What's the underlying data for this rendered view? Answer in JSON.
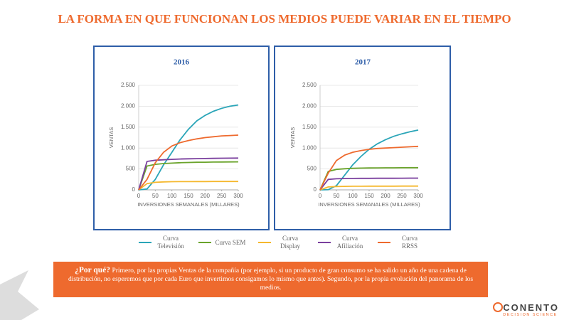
{
  "title": "LA FORMA EN QUE FUNCIONAN LOS MEDIOS PUEDE VARIAR EN EL TIEMPO",
  "chart_data": [
    {
      "type": "line",
      "title": "2016",
      "y_label": "VENTAS",
      "x_label": "INVERSIONES SEMANALES (MILLARES)",
      "x": [
        0,
        25,
        50,
        75,
        100,
        125,
        150,
        175,
        200,
        225,
        250,
        275,
        300
      ],
      "xlim": [
        0,
        300
      ],
      "xticks": [
        0,
        50,
        100,
        150,
        200,
        250,
        300
      ],
      "ylim": [
        0,
        2500
      ],
      "yticks": [
        0,
        500,
        {
          "value": 1000,
          "label": "1.000"
        },
        {
          "value": 1500,
          "label": "1.500"
        },
        {
          "value": 2000,
          "label": "2.000"
        },
        {
          "value": 2500,
          "label": "2.500"
        }
      ],
      "grid": true,
      "series": [
        {
          "color": "#2aa5b8",
          "values": [
            0,
            20,
            250,
            600,
            900,
            1200,
            1450,
            1650,
            1780,
            1880,
            1950,
            2000,
            2030
          ]
        },
        {
          "color": "#6aa32b",
          "values": [
            0,
            570,
            610,
            630,
            640,
            650,
            655,
            660,
            662,
            665,
            667,
            668,
            670
          ]
        },
        {
          "color": "#f5b82e",
          "values": [
            0,
            150,
            180,
            190,
            195,
            197,
            198,
            199,
            199,
            200,
            200,
            200,
            200
          ]
        },
        {
          "color": "#7a3f9e",
          "values": [
            0,
            680,
            710,
            720,
            730,
            738,
            743,
            747,
            750,
            753,
            756,
            758,
            760
          ]
        },
        {
          "color": "#ee6a2e",
          "values": [
            0,
            250,
            650,
            900,
            1050,
            1130,
            1180,
            1220,
            1250,
            1270,
            1290,
            1300,
            1310
          ]
        }
      ]
    },
    {
      "type": "line",
      "title": "2017",
      "y_label": "VENTAS",
      "x_label": "INVERSIONES SEMANALES (MILLARES)",
      "x": [
        0,
        25,
        50,
        75,
        100,
        125,
        150,
        175,
        200,
        225,
        250,
        275,
        300
      ],
      "xlim": [
        0,
        300
      ],
      "xticks": [
        0,
        50,
        100,
        150,
        200,
        250,
        300
      ],
      "ylim": [
        0,
        2500
      ],
      "yticks": [
        0,
        500,
        {
          "value": 1000,
          "label": "1.000"
        },
        {
          "value": 1500,
          "label": "1.500"
        },
        {
          "value": 2000,
          "label": "2.000"
        },
        {
          "value": 2500,
          "label": "2.500"
        }
      ],
      "grid": true,
      "series": [
        {
          "color": "#2aa5b8",
          "values": [
            0,
            5,
            100,
            350,
            600,
            800,
            970,
            1100,
            1200,
            1280,
            1340,
            1390,
            1430
          ]
        },
        {
          "color": "#6aa32b",
          "values": [
            0,
            440,
            490,
            505,
            515,
            520,
            523,
            525,
            527,
            528,
            529,
            530,
            530
          ]
        },
        {
          "color": "#f5b82e",
          "values": [
            0,
            70,
            80,
            84,
            86,
            87,
            88,
            88,
            89,
            89,
            90,
            90,
            90
          ]
        },
        {
          "color": "#7a3f9e",
          "values": [
            0,
            250,
            265,
            270,
            273,
            275,
            276,
            277,
            278,
            278,
            279,
            280,
            280
          ]
        },
        {
          "color": "#ee6a2e",
          "values": [
            0,
            400,
            700,
            830,
            900,
            940,
            970,
            990,
            1000,
            1010,
            1020,
            1030,
            1040
          ]
        }
      ]
    }
  ],
  "legend": [
    {
      "name": "Curva Televisión",
      "color": "#2aa5b8"
    },
    {
      "name": "Curva SEM",
      "color": "#6aa32b"
    },
    {
      "name": "Curva Display",
      "color": "#f5b82e"
    },
    {
      "name": "Curva Afiliación",
      "color": "#7a3f9e"
    },
    {
      "name": "Curva RRSS",
      "color": "#ee6a2e"
    }
  ],
  "callout": {
    "lead": "¿Por qué?",
    "text": "Primero, por las propias Ventas de la compañía (por ejemplo, si un producto de gran consumo se ha salido un año de una cadena de distribución, no esperemos que por cada Euro que invertimos consigamos lo mismo que antes). Segundo, por la propia evolución del panorama de los medios."
  },
  "logo": {
    "name": "CONENTO",
    "tagline": "DECISION SCIENCE"
  }
}
